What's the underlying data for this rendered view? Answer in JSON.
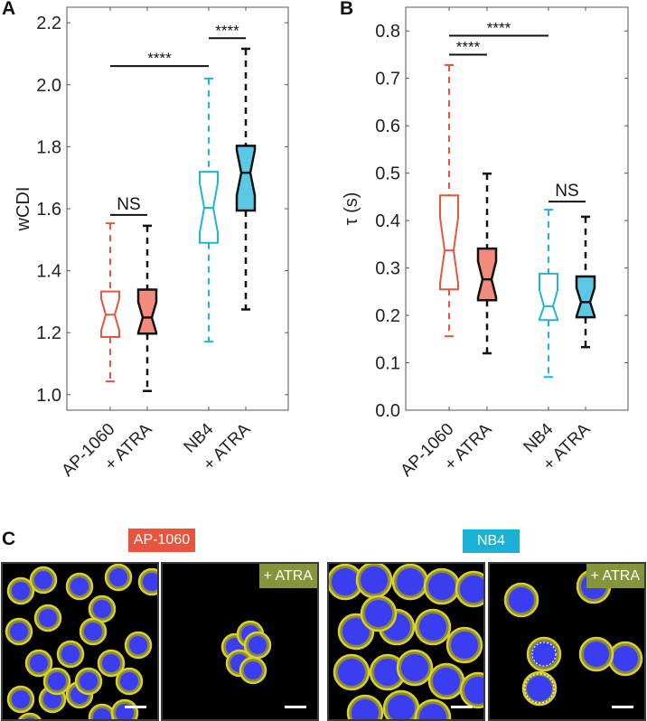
{
  "chart_data": [
    {
      "panel": "A",
      "type": "box",
      "ylabel": "wCDI",
      "xlabel": "",
      "ylim": [
        0.95,
        2.25
      ],
      "yticks": [
        "1.0",
        "1.2",
        "1.4",
        "1.6",
        "1.8",
        "2.0",
        "2.2"
      ],
      "ytick_values": [
        1.0,
        1.2,
        1.4,
        1.6,
        1.8,
        2.0,
        2.2
      ],
      "grid": false,
      "notched": true,
      "categories": [
        "AP-1060",
        "+ ATRA",
        "NB4",
        "+ ATRA"
      ],
      "series": [
        {
          "name": "AP-1060",
          "whisker_low": 1.043,
          "q1": 1.186,
          "median": 1.258,
          "q3": 1.333,
          "whisker_high": 1.553,
          "style": "outline",
          "color": "#e8553e",
          "fill": "none",
          "dashed_whisker_color": "#e8553e"
        },
        {
          "name": "AP-1060 + ATRA",
          "whisker_low": 1.012,
          "q1": 1.197,
          "median": 1.249,
          "q3": 1.339,
          "whisker_high": 1.545,
          "style": "filled",
          "color": "#111111",
          "fill": "#f28b7b",
          "dashed_whisker_color": "#111111"
        },
        {
          "name": "NB4",
          "whisker_low": 1.171,
          "q1": 1.49,
          "median": 1.603,
          "q3": 1.719,
          "whisker_high": 2.02,
          "style": "outline",
          "color": "#22b4d6",
          "fill": "none",
          "dashed_whisker_color": "#22b4d6"
        },
        {
          "name": "NB4 + ATRA",
          "whisker_low": 1.275,
          "q1": 1.594,
          "median": 1.716,
          "q3": 1.803,
          "whisker_high": 2.116,
          "style": "filled",
          "color": "#111111",
          "fill": "#5bc8e6",
          "dashed_whisker_color": "#111111"
        }
      ],
      "annotations": [
        {
          "from": 0,
          "to": 1,
          "y": 1.58,
          "label": "NS"
        },
        {
          "from": 0,
          "to": 2,
          "y": 2.06,
          "label": "****"
        },
        {
          "from": 2,
          "to": 3,
          "y": 2.15,
          "label": "****"
        }
      ]
    },
    {
      "panel": "B",
      "type": "box",
      "ylabel": "τ (s)",
      "xlabel": "",
      "ylim": [
        0.0,
        0.85
      ],
      "yticks": [
        "0.0",
        "0.1",
        "0.2",
        "0.3",
        "0.4",
        "0.5",
        "0.6",
        "0.7",
        "0.8"
      ],
      "ytick_values": [
        0.0,
        0.1,
        0.2,
        0.3,
        0.4,
        0.5,
        0.6,
        0.7,
        0.8
      ],
      "grid": false,
      "notched": true,
      "categories": [
        "AP-1060",
        "+ ATRA",
        "NB4",
        "+ ATRA"
      ],
      "series": [
        {
          "name": "AP-1060",
          "whisker_low": 0.156,
          "q1": 0.255,
          "median": 0.337,
          "q3": 0.453,
          "whisker_high": 0.728,
          "style": "outline",
          "color": "#e8553e",
          "fill": "none",
          "dashed_whisker_color": "#e8553e"
        },
        {
          "name": "AP-1060 + ATRA",
          "whisker_low": 0.12,
          "q1": 0.232,
          "median": 0.276,
          "q3": 0.341,
          "whisker_high": 0.499,
          "style": "filled",
          "color": "#111111",
          "fill": "#f28b7b",
          "dashed_whisker_color": "#111111"
        },
        {
          "name": "NB4",
          "whisker_low": 0.07,
          "q1": 0.19,
          "median": 0.219,
          "q3": 0.288,
          "whisker_high": 0.423,
          "style": "outline",
          "color": "#22b4d6",
          "fill": "none",
          "dashed_whisker_color": "#22b4d6"
        },
        {
          "name": "NB4 + ATRA",
          "whisker_low": 0.133,
          "q1": 0.196,
          "median": 0.228,
          "q3": 0.282,
          "whisker_high": 0.408,
          "style": "filled",
          "color": "#111111",
          "fill": "#5bc8e6",
          "dashed_whisker_color": "#111111"
        }
      ],
      "annotations": [
        {
          "from": 0,
          "to": 1,
          "y": 0.75,
          "label": "****"
        },
        {
          "from": 0,
          "to": 2,
          "y": 0.79,
          "label": "****"
        },
        {
          "from": 2,
          "to": 3,
          "y": 0.44,
          "label": "NS"
        }
      ]
    }
  ],
  "panels": {
    "a_letter": "A",
    "b_letter": "B",
    "c_letter": "C"
  },
  "microscopy": {
    "group_tags": [
      {
        "label": "AP-1060",
        "color": "#e8553e"
      },
      {
        "label": "NB4",
        "color": "#1ab0d8"
      }
    ],
    "treatment_tag": {
      "label": "+ ATRA",
      "color": "#86953a"
    },
    "images": [
      {
        "name": "AP-1060",
        "treatment": ""
      },
      {
        "name": "AP-1060",
        "treatment": "+ ATRA"
      },
      {
        "name": "NB4",
        "treatment": ""
      },
      {
        "name": "NB4",
        "treatment": "+ ATRA"
      }
    ]
  }
}
